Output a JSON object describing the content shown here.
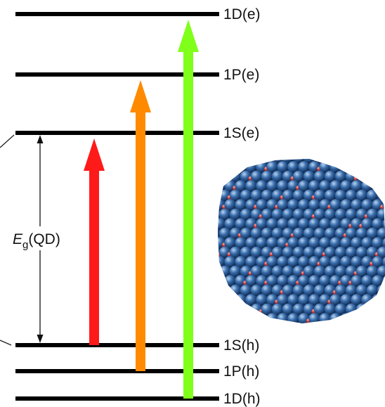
{
  "diagram": {
    "levels": [
      {
        "id": "1D-e",
        "label": "1D(e)"
      },
      {
        "id": "1P-e",
        "label": "1P(e)"
      },
      {
        "id": "1S-e",
        "label": "1S(e)"
      },
      {
        "id": "1S-h",
        "label": "1S(h)"
      },
      {
        "id": "1P-h",
        "label": "1P(h)"
      },
      {
        "id": "1D-h",
        "label": "1D(h)"
      }
    ],
    "band_gap": {
      "symbol": "E",
      "subscript": "g",
      "suffix": "(QD)"
    },
    "transitions": [
      {
        "from": "1S-h",
        "to": "1S-e",
        "color": "#ff1a1a"
      },
      {
        "from": "1P-h",
        "to": "1P-e",
        "color": "#ff8a00"
      },
      {
        "from": "1D-h",
        "to": "1D-e",
        "color": "#80ff1a"
      }
    ],
    "nanocrystal": {
      "sphere_color": "#3a6fae",
      "accent_color": "#d23a3a"
    }
  }
}
